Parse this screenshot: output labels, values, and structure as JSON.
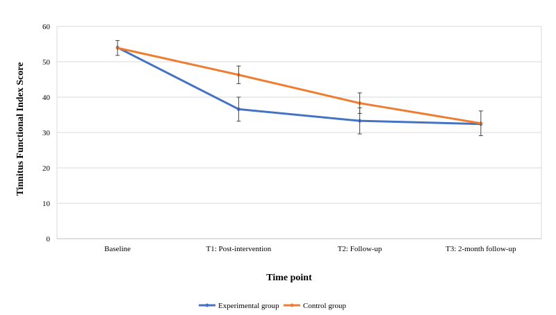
{
  "chart_data": {
    "type": "line",
    "title": "",
    "xlabel": "Time point",
    "ylabel": "Tinnitus Functional Index Score",
    "ylim": [
      0,
      60
    ],
    "yticks": [
      0,
      10,
      20,
      30,
      40,
      50,
      60
    ],
    "grid": true,
    "legend_position": "bottom",
    "categories": [
      "Baseline",
      "T1: Post-intervention",
      "T2: Follow-up",
      "T3: 2-month follow-up"
    ],
    "series": [
      {
        "name": "Experimental group",
        "color": "#4472C4",
        "values": [
          54.0,
          36.6,
          33.3,
          32.4
        ],
        "error": [
          0,
          3.4,
          3.7,
          0
        ]
      },
      {
        "name": "Control group",
        "color": "#ED7D31",
        "values": [
          53.9,
          46.3,
          38.3,
          32.6
        ],
        "error": [
          2.1,
          2.5,
          2.9,
          3.5
        ]
      }
    ]
  }
}
